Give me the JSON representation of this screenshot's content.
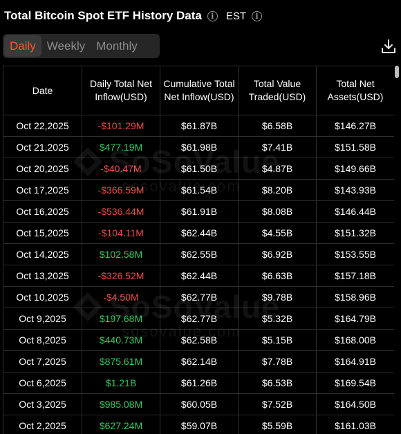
{
  "header": {
    "title": "Total Bitcoin Spot ETF History Data",
    "timezone": "EST"
  },
  "tabs": [
    {
      "label": "Daily",
      "active": true
    },
    {
      "label": "Weekly",
      "active": false
    },
    {
      "label": "Monthly",
      "active": false
    }
  ],
  "icons": {
    "info": "info-icon",
    "download": "download-icon"
  },
  "colors": {
    "accent": "#f05a28",
    "positive": "#2fcc61",
    "negative": "#f04848",
    "background": "#000000"
  },
  "table": {
    "headers": [
      "Date",
      "Daily Total Net Inflow(USD)",
      "Cumulative Total Net Inflow(USD)",
      "Total Value Traded(USD)",
      "Total Net Assets(USD)"
    ],
    "rows": [
      {
        "date": "Oct 22,2025",
        "inflow": "-$101.29M",
        "sign": "neg",
        "cumulative": "$61.87B",
        "traded": "$6.58B",
        "assets": "$146.27B"
      },
      {
        "date": "Oct 21,2025",
        "inflow": "$477.19M",
        "sign": "pos",
        "cumulative": "$61.98B",
        "traded": "$7.41B",
        "assets": "$151.58B"
      },
      {
        "date": "Oct 20,2025",
        "inflow": "-$40.47M",
        "sign": "neg",
        "cumulative": "$61.50B",
        "traded": "$4.87B",
        "assets": "$149.66B"
      },
      {
        "date": "Oct 17,2025",
        "inflow": "-$366.59M",
        "sign": "neg",
        "cumulative": "$61.54B",
        "traded": "$8.20B",
        "assets": "$143.93B"
      },
      {
        "date": "Oct 16,2025",
        "inflow": "-$536.44M",
        "sign": "neg",
        "cumulative": "$61.91B",
        "traded": "$8.08B",
        "assets": "$146.44B"
      },
      {
        "date": "Oct 15,2025",
        "inflow": "-$104.11M",
        "sign": "neg",
        "cumulative": "$62.44B",
        "traded": "$4.55B",
        "assets": "$151.32B"
      },
      {
        "date": "Oct 14,2025",
        "inflow": "$102.58M",
        "sign": "pos",
        "cumulative": "$62.55B",
        "traded": "$6.92B",
        "assets": "$153.55B"
      },
      {
        "date": "Oct 13,2025",
        "inflow": "-$326.52M",
        "sign": "neg",
        "cumulative": "$62.44B",
        "traded": "$6.63B",
        "assets": "$157.18B"
      },
      {
        "date": "Oct 10,2025",
        "inflow": "-$4.50M",
        "sign": "neg",
        "cumulative": "$62.77B",
        "traded": "$9.78B",
        "assets": "$158.96B"
      },
      {
        "date": "Oct 9,2025",
        "inflow": "$197.68M",
        "sign": "pos",
        "cumulative": "$62.77B",
        "traded": "$5.32B",
        "assets": "$164.79B"
      },
      {
        "date": "Oct 8,2025",
        "inflow": "$440.73M",
        "sign": "pos",
        "cumulative": "$62.58B",
        "traded": "$5.15B",
        "assets": "$168.00B"
      },
      {
        "date": "Oct 7,2025",
        "inflow": "$875.61M",
        "sign": "pos",
        "cumulative": "$62.14B",
        "traded": "$7.78B",
        "assets": "$164.91B"
      },
      {
        "date": "Oct 6,2025",
        "inflow": "$1.21B",
        "sign": "pos",
        "cumulative": "$61.26B",
        "traded": "$6.53B",
        "assets": "$169.54B"
      },
      {
        "date": "Oct 3,2025",
        "inflow": "$985.08M",
        "sign": "pos",
        "cumulative": "$60.05B",
        "traded": "$7.52B",
        "assets": "$164.50B"
      },
      {
        "date": "Oct 2,2025",
        "inflow": "$627.24M",
        "sign": "pos",
        "cumulative": "$59.07B",
        "traded": "$5.59B",
        "assets": "$161.03B"
      }
    ]
  },
  "watermark": {
    "name": "SoSoValue",
    "url": "sosovalue.com"
  }
}
